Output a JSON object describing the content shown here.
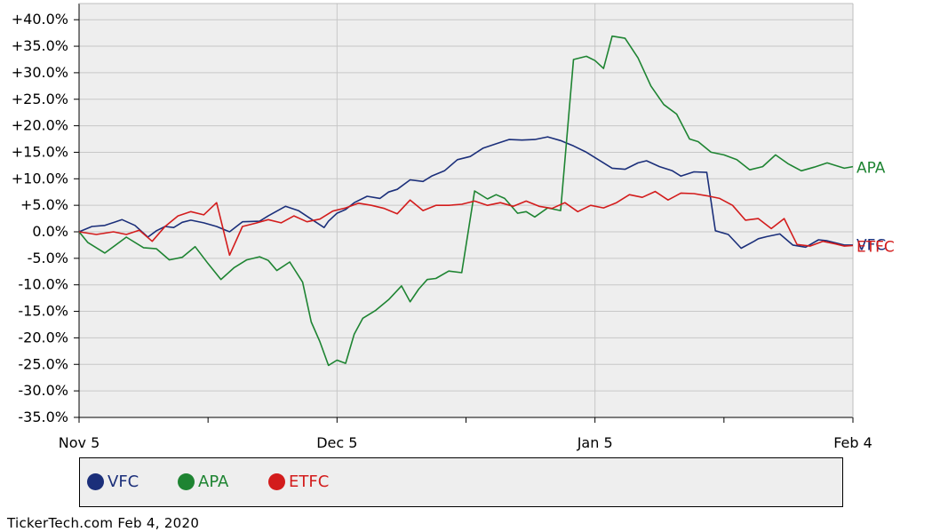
{
  "chart_data": {
    "type": "line",
    "y_ticks": [
      "+40.0%",
      "+35.0%",
      "+30.0%",
      "+25.0%",
      "+20.0%",
      "+15.0%",
      "+10.0%",
      "+5.0%",
      "0.0%",
      "-5.0%",
      "-10.0%",
      "-15.0%",
      "-20.0%",
      "-25.0%",
      "-30.0%",
      "-35.0%"
    ],
    "y_tick_values": [
      40,
      35,
      30,
      25,
      20,
      15,
      10,
      5,
      0,
      -5,
      -10,
      -15,
      -20,
      -25,
      -30,
      -35
    ],
    "x_ticks": [
      "Nov 5",
      "Dec 5",
      "Jan 5",
      "Feb 4"
    ],
    "x_tick_values": [
      0,
      30,
      60,
      90
    ],
    "xlim": [
      0,
      90
    ],
    "ylim": [
      -35,
      41
    ],
    "grid": true,
    "series": [
      {
        "name": "VFC",
        "color": "#1b2f7a",
        "x": [
          0,
          1.5,
          3,
          5,
          6.5,
          8,
          9,
          10,
          11,
          12,
          13,
          14.5,
          16,
          17.5,
          19,
          21,
          22,
          24,
          25.5,
          27,
          28.5,
          29,
          30,
          31,
          32,
          33.5,
          35,
          36,
          37,
          38.5,
          40,
          41,
          42.5,
          44,
          45.5,
          47,
          48.5,
          50,
          51.5,
          53,
          54.5,
          56,
          57.5,
          59,
          60.5,
          62,
          63.5,
          65,
          66,
          67.5,
          69,
          70,
          71.5,
          73,
          74,
          75.5,
          77,
          78.5,
          79,
          80,
          81.5,
          83,
          84.5,
          86,
          87,
          88,
          89,
          90
        ],
        "y": [
          0,
          1,
          1.2,
          2.3,
          1.2,
          -1,
          0.2,
          1,
          0.8,
          1.8,
          2.2,
          1.7,
          1,
          0,
          1.9,
          2,
          3,
          4.8,
          4,
          2.4,
          0.8,
          2,
          3.5,
          4.2,
          5.5,
          6.7,
          6.3,
          7.5,
          8,
          9.8,
          9.5,
          10.5,
          11.5,
          13.6,
          14.2,
          15.8,
          16.6,
          17.4,
          17.3,
          17.4,
          17.9,
          17.2,
          16.2,
          15,
          13.5,
          12,
          11.8,
          13,
          13.4,
          12.3,
          11.5,
          10.5,
          11.3,
          11.2,
          0.2,
          -0.5,
          -3.1,
          -1.8,
          -1.3,
          -0.9,
          -0.4,
          -2.5,
          -2.9,
          -1.5,
          -1.7,
          -2.1,
          -2.5,
          -2.5
        ]
      },
      {
        "name": "APA",
        "color": "#1e8432",
        "x": [
          0,
          1,
          3,
          5.5,
          7.5,
          9,
          10.5,
          12,
          13.5,
          15,
          16.5,
          18,
          19.5,
          21,
          22,
          23,
          24.5,
          26,
          27,
          28,
          29,
          30,
          31,
          32,
          33,
          34.5,
          36,
          37.5,
          38.5,
          39.5,
          40.5,
          41.5,
          43,
          44.5,
          46,
          47.5,
          48.5,
          49.5,
          51,
          52,
          53,
          54.5,
          56,
          57.5,
          59,
          60,
          61,
          62,
          63.5,
          65,
          66.5,
          68,
          69.5,
          71,
          72,
          73.5,
          75,
          76.5,
          78,
          79.5,
          81,
          82.5,
          84,
          85.5,
          87,
          88,
          89,
          90
        ],
        "y": [
          0,
          -2,
          -4,
          -1,
          -3,
          -3.2,
          -5.3,
          -4.8,
          -2.8,
          -6,
          -9,
          -6.8,
          -5.3,
          -4.7,
          -5.4,
          -7.3,
          -5.7,
          -9.5,
          -17,
          -20.7,
          -25.2,
          -24.2,
          -24.8,
          -19.3,
          -16.3,
          -14.8,
          -12.8,
          -10.2,
          -13.2,
          -10.8,
          -9,
          -8.8,
          -7.4,
          -7.7,
          7.7,
          6.2,
          7,
          6.3,
          3.5,
          3.8,
          2.8,
          4.5,
          4,
          32.5,
          33.1,
          32.3,
          30.8,
          36.9,
          36.5,
          32.8,
          27.5,
          24,
          22.2,
          17.5,
          17,
          15,
          14.5,
          13.6,
          11.7,
          12.3,
          14.5,
          12.8,
          11.5,
          12.2,
          13,
          12.5,
          12,
          12.3
        ]
      },
      {
        "name": "ETFC",
        "color": "#d31c1c",
        "x": [
          0,
          2,
          4,
          5.5,
          7,
          8.5,
          10,
          11.5,
          13,
          14.5,
          16,
          17.5,
          19,
          20.5,
          22,
          23.5,
          25,
          26.5,
          28,
          29.5,
          31,
          32.5,
          34,
          35.5,
          37,
          38.5,
          40,
          41.5,
          43,
          44.5,
          46,
          47.5,
          49,
          50.5,
          52,
          53.5,
          55,
          56.5,
          58,
          59.5,
          61,
          62.5,
          64,
          65.5,
          67,
          68.5,
          70,
          71.5,
          73,
          74.5,
          76,
          77.5,
          79,
          80.5,
          82,
          83.5,
          85,
          86.5,
          88,
          89,
          90
        ],
        "y": [
          0,
          -0.5,
          0,
          -0.5,
          0.3,
          -1.8,
          1,
          3,
          3.8,
          3.2,
          5.5,
          -4.4,
          1,
          1.6,
          2.3,
          1.7,
          3,
          1.9,
          2.4,
          3.9,
          4.5,
          5.4,
          5,
          4.4,
          3.4,
          6,
          4,
          5,
          5,
          5.2,
          5.8,
          5,
          5.5,
          4.8,
          5.8,
          4.8,
          4.4,
          5.5,
          3.8,
          5,
          4.5,
          5.5,
          7,
          6.5,
          7.6,
          6,
          7.3,
          7.2,
          6.8,
          6.3,
          5,
          2.2,
          2.5,
          0.6,
          2.5,
          -2.4,
          -2.7,
          -1.8,
          -2.3,
          -2.7,
          -2.6
        ]
      }
    ],
    "end_labels": [
      {
        "text": "APA",
        "color": "#1e8432",
        "y": 12.3
      },
      {
        "text": "VFC",
        "color": "#1b2f7a",
        "y": -2.3
      },
      {
        "text": "ETFC",
        "color": "#d31c1c",
        "y": -2.6
      }
    ]
  },
  "legend": {
    "items": [
      {
        "label": "VFC",
        "color": "#1b2f7a"
      },
      {
        "label": "APA",
        "color": "#1e8432"
      },
      {
        "label": "ETFC",
        "color": "#d31c1c"
      }
    ]
  },
  "footer": {
    "text": "TickerTech.com  Feb 4, 2020"
  }
}
